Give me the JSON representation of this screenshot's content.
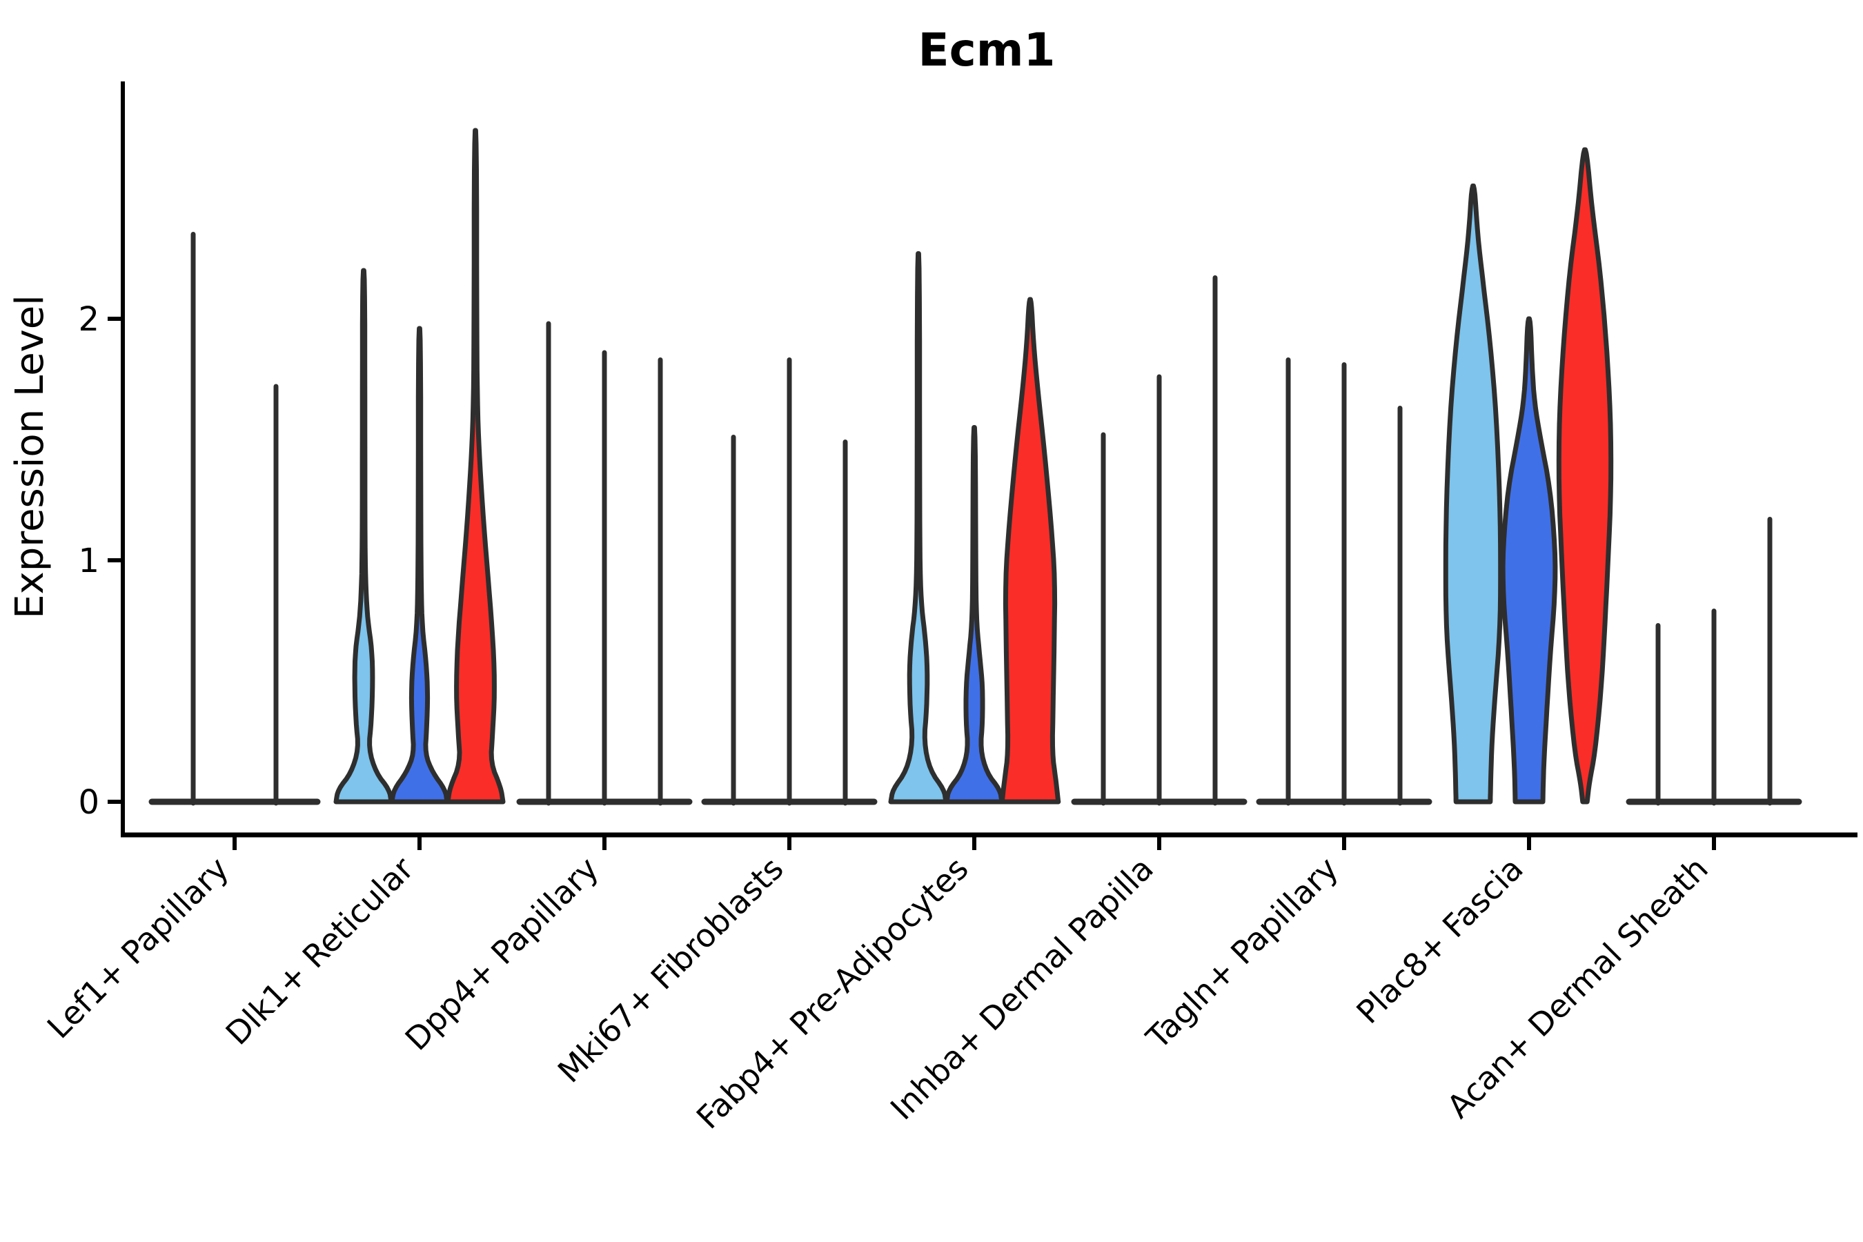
{
  "title": "Ecm1",
  "ylabel": "Expression Level",
  "colors": {
    "split_lightblue": "#7EC4EC",
    "split_blue": "#4070E8",
    "split_red": "#FA2D28",
    "outline": "#2E2E2E",
    "axis": "#000000",
    "background": "#FFFFFF"
  },
  "chart_data": {
    "type": "violin",
    "title": "Ecm1",
    "ylabel": "Expression Level",
    "xlabel": "",
    "yticks": [
      0,
      1,
      2
    ],
    "ylim": [
      -0.14,
      2.98
    ],
    "grid": false,
    "legend": "none",
    "split_colors": [
      "#7EC4EC",
      "#4070E8",
      "#FA2D28"
    ],
    "categories": [
      {
        "label": "Lef1+ Papillary",
        "dodge": 60,
        "base_half": 120,
        "violins": [
          {
            "split": 0,
            "max": 2.35,
            "shape": "spike"
          },
          {
            "split": 1,
            "max": 1.72,
            "shape": "spike"
          }
        ]
      },
      {
        "label": "Dlk1+ Reticular",
        "dodge": 81,
        "base_half": 123,
        "violins": [
          {
            "split": 0,
            "max": 2.2,
            "shape": "density",
            "profile": [
              [
                0,
                1.0
              ],
              [
                0.05,
                0.93
              ],
              [
                0.12,
                0.45
              ],
              [
                0.22,
                0.18
              ],
              [
                0.33,
                0.28
              ],
              [
                0.5,
                0.33
              ],
              [
                0.63,
                0.3
              ],
              [
                0.75,
                0.15
              ],
              [
                0.88,
                0.08
              ],
              [
                1.05,
                0.05
              ],
              [
                1.6,
                0.045
              ],
              [
                2.2,
                0.04
              ]
            ]
          },
          {
            "split": 1,
            "max": 1.96,
            "shape": "density",
            "profile": [
              [
                0,
                1.0
              ],
              [
                0.05,
                0.93
              ],
              [
                0.12,
                0.48
              ],
              [
                0.2,
                0.2
              ],
              [
                0.3,
                0.26
              ],
              [
                0.45,
                0.3
              ],
              [
                0.58,
                0.24
              ],
              [
                0.72,
                0.1
              ],
              [
                0.88,
                0.06
              ],
              [
                1.2,
                0.045
              ],
              [
                1.96,
                0.04
              ]
            ]
          },
          {
            "split": 2,
            "max": 2.78,
            "shape": "density",
            "profile": [
              [
                0,
                1.0
              ],
              [
                0.06,
                0.92
              ],
              [
                0.16,
                0.55
              ],
              [
                0.28,
                0.62
              ],
              [
                0.45,
                0.7
              ],
              [
                0.65,
                0.65
              ],
              [
                0.9,
                0.48
              ],
              [
                1.15,
                0.3
              ],
              [
                1.4,
                0.16
              ],
              [
                1.6,
                0.08
              ],
              [
                1.9,
                0.05
              ],
              [
                2.78,
                0.04
              ]
            ]
          }
        ]
      },
      {
        "label": "Dpp4+ Papillary",
        "dodge": 81,
        "base_half": 123,
        "violins": [
          {
            "split": 0,
            "max": 1.98,
            "shape": "spike"
          },
          {
            "split": 1,
            "max": 1.86,
            "shape": "spike"
          },
          {
            "split": 2,
            "max": 1.83,
            "shape": "spike"
          }
        ]
      },
      {
        "label": "Mki67+ Fibroblasts",
        "dodge": 81,
        "base_half": 123,
        "violins": [
          {
            "split": 0,
            "max": 1.51,
            "shape": "spike"
          },
          {
            "split": 1,
            "max": 1.83,
            "shape": "spike"
          },
          {
            "split": 2,
            "max": 1.49,
            "shape": "spike"
          }
        ]
      },
      {
        "label": "Fabp4+ Pre-Adipocytes",
        "dodge": 81,
        "base_half": 123,
        "violins": [
          {
            "split": 0,
            "max": 2.27,
            "shape": "density",
            "profile": [
              [
                0,
                1.0
              ],
              [
                0.05,
                0.93
              ],
              [
                0.13,
                0.42
              ],
              [
                0.25,
                0.2
              ],
              [
                0.38,
                0.3
              ],
              [
                0.55,
                0.33
              ],
              [
                0.68,
                0.25
              ],
              [
                0.8,
                0.12
              ],
              [
                0.95,
                0.06
              ],
              [
                1.3,
                0.045
              ],
              [
                2.27,
                0.04
              ]
            ]
          },
          {
            "split": 1,
            "max": 1.55,
            "shape": "density",
            "profile": [
              [
                0,
                1.0
              ],
              [
                0.05,
                0.93
              ],
              [
                0.12,
                0.45
              ],
              [
                0.22,
                0.22
              ],
              [
                0.33,
                0.3
              ],
              [
                0.48,
                0.3
              ],
              [
                0.6,
                0.2
              ],
              [
                0.73,
                0.09
              ],
              [
                0.9,
                0.055
              ],
              [
                1.55,
                0.04
              ]
            ]
          },
          {
            "split": 2,
            "max": 2.08,
            "shape": "density",
            "profile": [
              [
                0,
                1.02
              ],
              [
                0.1,
                0.92
              ],
              [
                0.2,
                0.8
              ],
              [
                0.4,
                0.83
              ],
              [
                0.65,
                0.87
              ],
              [
                0.92,
                0.9
              ],
              [
                1.15,
                0.76
              ],
              [
                1.45,
                0.52
              ],
              [
                1.7,
                0.28
              ],
              [
                1.9,
                0.12
              ],
              [
                2.08,
                0.04
              ]
            ]
          }
        ]
      },
      {
        "label": "Inhba+ Dermal Papilla",
        "dodge": 81,
        "base_half": 123,
        "violins": [
          {
            "split": 0,
            "max": 1.52,
            "shape": "spike"
          },
          {
            "split": 1,
            "max": 1.76,
            "shape": "spike"
          },
          {
            "split": 2,
            "max": 2.17,
            "shape": "spike"
          }
        ]
      },
      {
        "label": "Tagln+ Papillary",
        "dodge": 81,
        "base_half": 123,
        "violins": [
          {
            "split": 0,
            "max": 1.83,
            "shape": "spike"
          },
          {
            "split": 1,
            "max": 1.81,
            "shape": "spike"
          },
          {
            "split": 2,
            "max": 1.63,
            "shape": "spike"
          }
        ]
      },
      {
        "label": "Plac8+ Fascia",
        "dodge": 81,
        "base_half": 123,
        "violins": [
          {
            "split": 0,
            "max": 2.55,
            "shape": "density",
            "profile": [
              [
                0,
                0.62
              ],
              [
                0.1,
                0.64
              ],
              [
                0.25,
                0.68
              ],
              [
                0.45,
                0.8
              ],
              [
                0.7,
                0.97
              ],
              [
                0.95,
                1.0
              ],
              [
                1.25,
                0.97
              ],
              [
                1.6,
                0.84
              ],
              [
                1.9,
                0.62
              ],
              [
                2.15,
                0.36
              ],
              [
                2.35,
                0.16
              ],
              [
                2.55,
                0.05
              ]
            ]
          },
          {
            "split": 1,
            "max": 2.0,
            "shape": "density",
            "profile": [
              [
                0,
                0.5
              ],
              [
                0.15,
                0.53
              ],
              [
                0.35,
                0.63
              ],
              [
                0.6,
                0.76
              ],
              [
                0.85,
                0.94
              ],
              [
                1.05,
                0.95
              ],
              [
                1.3,
                0.76
              ],
              [
                1.5,
                0.42
              ],
              [
                1.65,
                0.2
              ],
              [
                1.8,
                0.11
              ],
              [
                2.0,
                0.05
              ]
            ]
          },
          {
            "split": 2,
            "max": 2.7,
            "shape": "density",
            "profile": [
              [
                0,
                0.08
              ],
              [
                0.08,
                0.16
              ],
              [
                0.2,
                0.36
              ],
              [
                0.45,
                0.58
              ],
              [
                0.7,
                0.71
              ],
              [
                1.0,
                0.84
              ],
              [
                1.3,
                0.95
              ],
              [
                1.6,
                0.93
              ],
              [
                1.9,
                0.78
              ],
              [
                2.2,
                0.55
              ],
              [
                2.45,
                0.26
              ],
              [
                2.7,
                0.06
              ]
            ]
          }
        ]
      },
      {
        "label": "Acan+ Dermal Sheath",
        "dodge": 81,
        "base_half": 123,
        "violins": [
          {
            "split": 0,
            "max": 0.73,
            "shape": "spike"
          },
          {
            "split": 1,
            "max": 0.79,
            "shape": "spike"
          },
          {
            "split": 2,
            "max": 1.17,
            "shape": "spike"
          }
        ]
      }
    ]
  }
}
